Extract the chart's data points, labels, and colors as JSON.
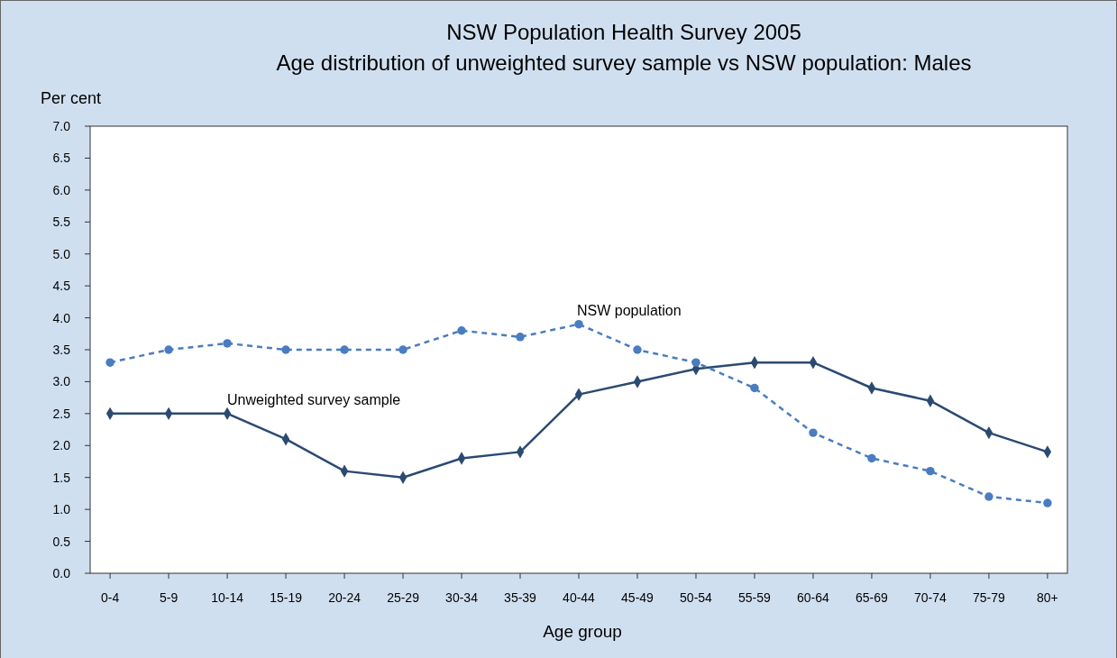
{
  "chart_data": {
    "type": "line",
    "title": "NSW Population Health Survey 2005",
    "subtitle": "Age distribution of unweighted survey sample vs NSW population: Males",
    "xlabel": "Age group",
    "ylabel": "Per cent",
    "categories": [
      "0-4",
      "5-9",
      "10-14",
      "15-19",
      "20-24",
      "25-29",
      "30-34",
      "35-39",
      "40-44",
      "45-49",
      "50-54",
      "55-59",
      "60-64",
      "65-69",
      "70-74",
      "75-79",
      "80+"
    ],
    "series": [
      {
        "name": "Unweighted survey sample",
        "color": "#2b4a72",
        "marker": "diamond",
        "line_style": "solid",
        "values": [
          2.5,
          2.5,
          2.5,
          2.1,
          1.6,
          1.5,
          1.8,
          1.9,
          2.8,
          3.0,
          3.2,
          3.3,
          3.3,
          2.9,
          2.7,
          2.2,
          1.9
        ]
      },
      {
        "name": "NSW population",
        "color": "#4a7cc0",
        "marker": "circle",
        "line_style": "dashed",
        "values": [
          3.3,
          3.5,
          3.6,
          3.5,
          3.5,
          3.5,
          3.8,
          3.7,
          3.9,
          3.5,
          3.3,
          2.9,
          2.2,
          1.8,
          1.6,
          1.2,
          1.1
        ]
      }
    ],
    "ylim": [
      0,
      7
    ],
    "yticks": [
      {
        "value": 0,
        "label": "0.0"
      },
      0.5,
      {
        "value": 1,
        "label": "1.0"
      },
      1.5,
      {
        "value": 2,
        "label": "2.0"
      },
      2.5,
      {
        "value": 3,
        "label": "3.0"
      },
      3.5,
      {
        "value": 4,
        "label": "4.0"
      },
      4.5,
      {
        "value": 5,
        "label": "5.0"
      },
      5.5,
      {
        "value": 6,
        "label": "6.0"
      },
      6.5,
      {
        "value": 7,
        "label": "7.0"
      }
    ],
    "grid": false,
    "legend": false
  }
}
